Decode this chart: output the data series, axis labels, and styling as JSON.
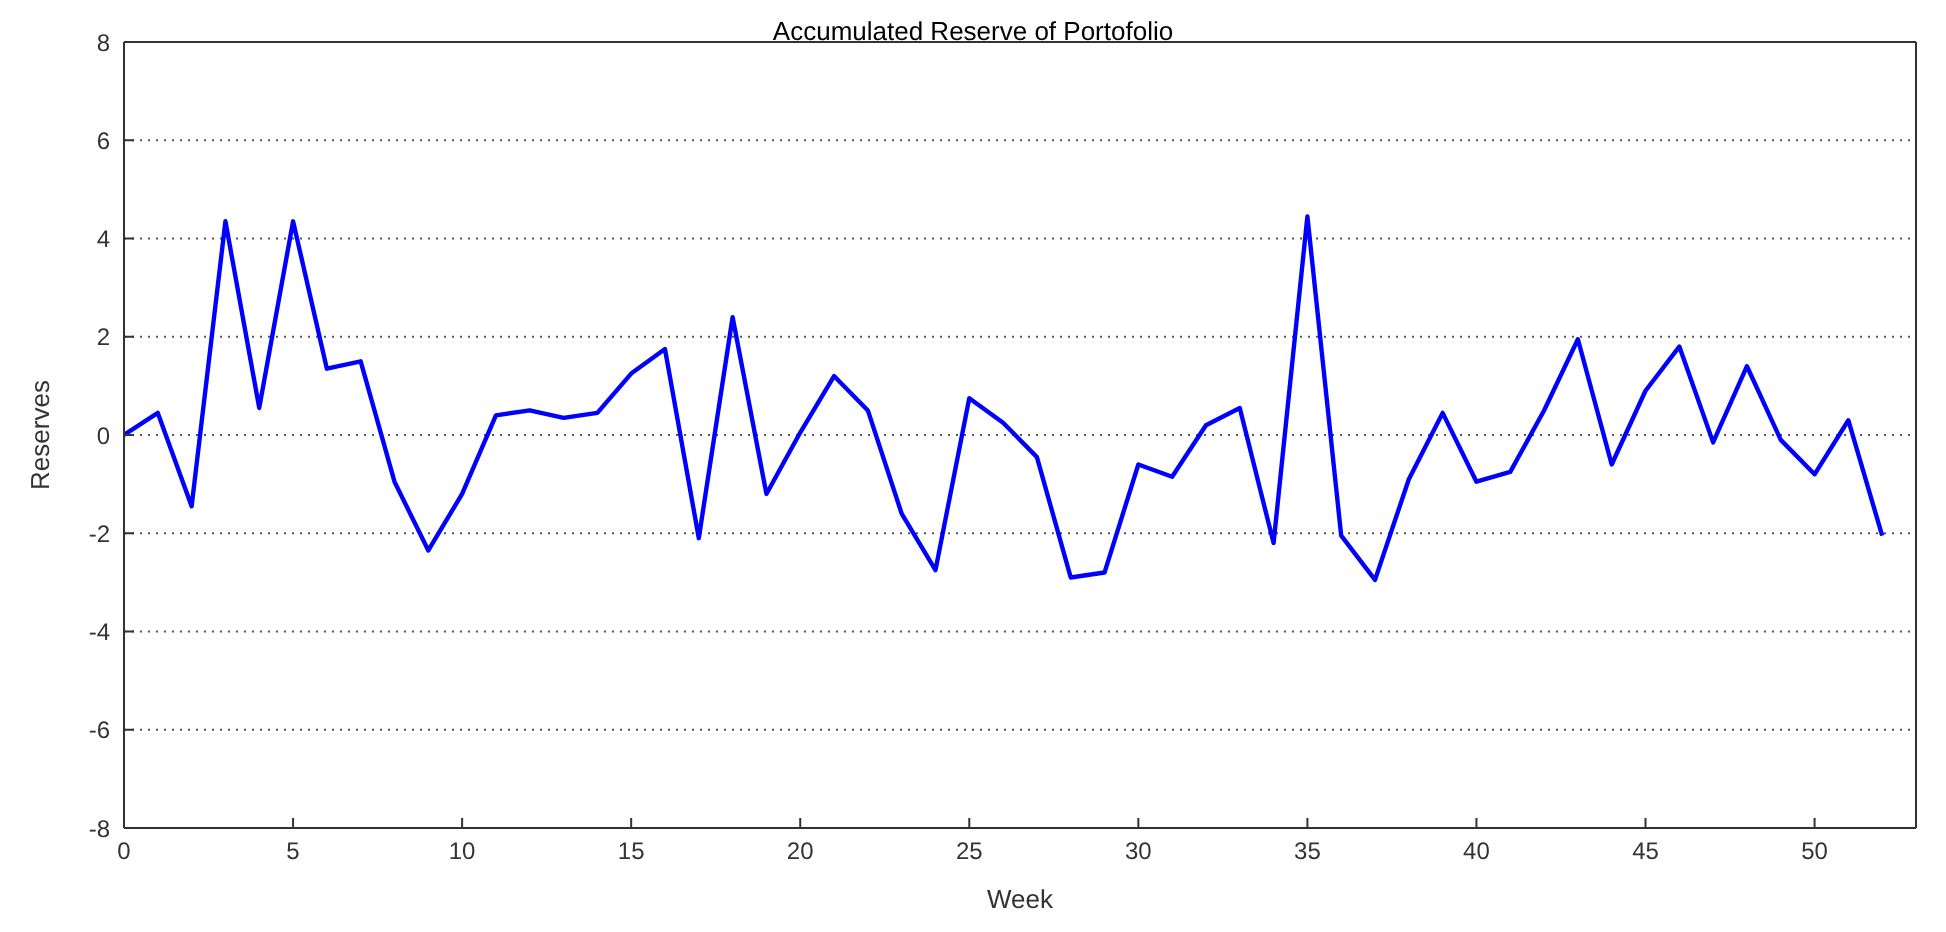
{
  "chart_data": {
    "type": "line",
    "title": "Accumulated Reserve of Portofolio",
    "xlabel": "Week",
    "ylabel": "Reserves",
    "x": [
      0,
      1,
      2,
      3,
      4,
      5,
      6,
      7,
      8,
      9,
      10,
      11,
      12,
      13,
      14,
      15,
      16,
      17,
      18,
      19,
      20,
      21,
      22,
      23,
      24,
      25,
      26,
      27,
      28,
      29,
      30,
      31,
      32,
      33,
      34,
      35,
      36,
      37,
      38,
      39,
      40,
      41,
      42,
      43,
      44,
      45,
      46,
      47,
      48,
      49,
      50,
      51,
      52
    ],
    "series": [
      {
        "color": "#0000ff",
        "values": [
          0,
          0.45,
          -1.45,
          4.35,
          0.55,
          4.35,
          1.35,
          1.5,
          -0.95,
          -2.35,
          -1.2,
          0.4,
          0.5,
          0.35,
          0.45,
          1.25,
          1.75,
          -2.1,
          2.4,
          -1.2,
          0.05,
          1.2,
          0.5,
          -1.6,
          -2.75,
          0.75,
          0.25,
          -0.45,
          -2.9,
          -2.8,
          -0.6,
          -0.85,
          0.2,
          0.55,
          -2.2,
          4.45,
          -2.05,
          -2.95,
          -0.9,
          0.45,
          -0.95,
          -0.75,
          0.5,
          1.95,
          -0.6,
          0.9,
          1.8,
          -0.15,
          1.4,
          -0.1,
          -0.8,
          0.3,
          -2.05
        ]
      }
    ],
    "xlim": [
      0,
      53
    ],
    "xticks": [
      0,
      5,
      10,
      15,
      20,
      25,
      30,
      35,
      40,
      45,
      50
    ],
    "ylim": [
      -8,
      8
    ],
    "yticks": [
      -8,
      -6,
      -4,
      -2,
      0,
      2,
      4,
      6,
      8
    ],
    "grid": "y",
    "legend": false,
    "marker": "none",
    "line_style": "solid"
  }
}
